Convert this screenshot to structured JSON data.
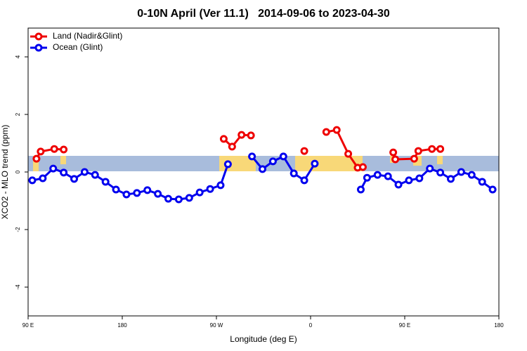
{
  "chart_data": {
    "type": "line",
    "title": "0-10N April (Ver 11.1)   2014-09-06 to 2023-04-30",
    "xlabel": "Longitude (deg E)",
    "ylabel": "XCO2 - MLO trend (ppm)",
    "xlim": [
      90,
      540
    ],
    "ylim": [
      -5,
      5
    ],
    "xticks": [
      {
        "value": 90,
        "label": "90 E"
      },
      180,
      {
        "value": 270,
        "label": "90 W"
      },
      {
        "value": 360,
        "label": "0"
      },
      {
        "value": 450,
        "label": "90 E"
      },
      {
        "value": 540,
        "label": "180"
      }
    ],
    "yticks": [
      -4,
      -2,
      0,
      2,
      4
    ],
    "legend": "top-left",
    "series": [
      {
        "name": "Land (Nadir&Glint)",
        "color": "#ee0000",
        "x": [
          98,
          102,
          115,
          124,
          null,
          277,
          285,
          294,
          303,
          null,
          354,
          null,
          375,
          385,
          396,
          405,
          410,
          null,
          439,
          441,
          459,
          463,
          476,
          484
        ],
        "values": [
          0.46,
          0.71,
          0.8,
          0.78,
          null,
          1.15,
          0.88,
          1.29,
          1.27,
          null,
          0.73,
          null,
          1.39,
          1.46,
          0.63,
          0.15,
          0.17,
          null,
          0.68,
          0.44,
          0.46,
          0.73,
          0.8,
          0.8
        ]
      },
      {
        "name": "Ocean (Glint)",
        "color": "#0000ee",
        "x": [
          94,
          104,
          114,
          124,
          134,
          144,
          154,
          164,
          174,
          184,
          194,
          204,
          214,
          224,
          234,
          244,
          254,
          264,
          274,
          281,
          null,
          304,
          314,
          324,
          334,
          344,
          354,
          364,
          null,
          408,
          414,
          424,
          434,
          444,
          454,
          464,
          474,
          484,
          494,
          504,
          514,
          524,
          534
        ],
        "values": [
          -0.29,
          -0.22,
          0.12,
          -0.02,
          -0.24,
          0,
          -0.1,
          -0.34,
          -0.61,
          -0.78,
          -0.73,
          -0.63,
          -0.76,
          -0.93,
          -0.95,
          -0.9,
          -0.71,
          -0.59,
          -0.46,
          0.27,
          null,
          0.54,
          0.1,
          0.37,
          0.54,
          -0.05,
          -0.29,
          0.29,
          null,
          -0.61,
          -0.2,
          -0.1,
          -0.15,
          -0.44,
          -0.29,
          -0.22,
          0.12,
          -0.02,
          -0.24,
          0,
          -0.1,
          -0.34,
          -0.61
        ]
      }
    ]
  }
}
